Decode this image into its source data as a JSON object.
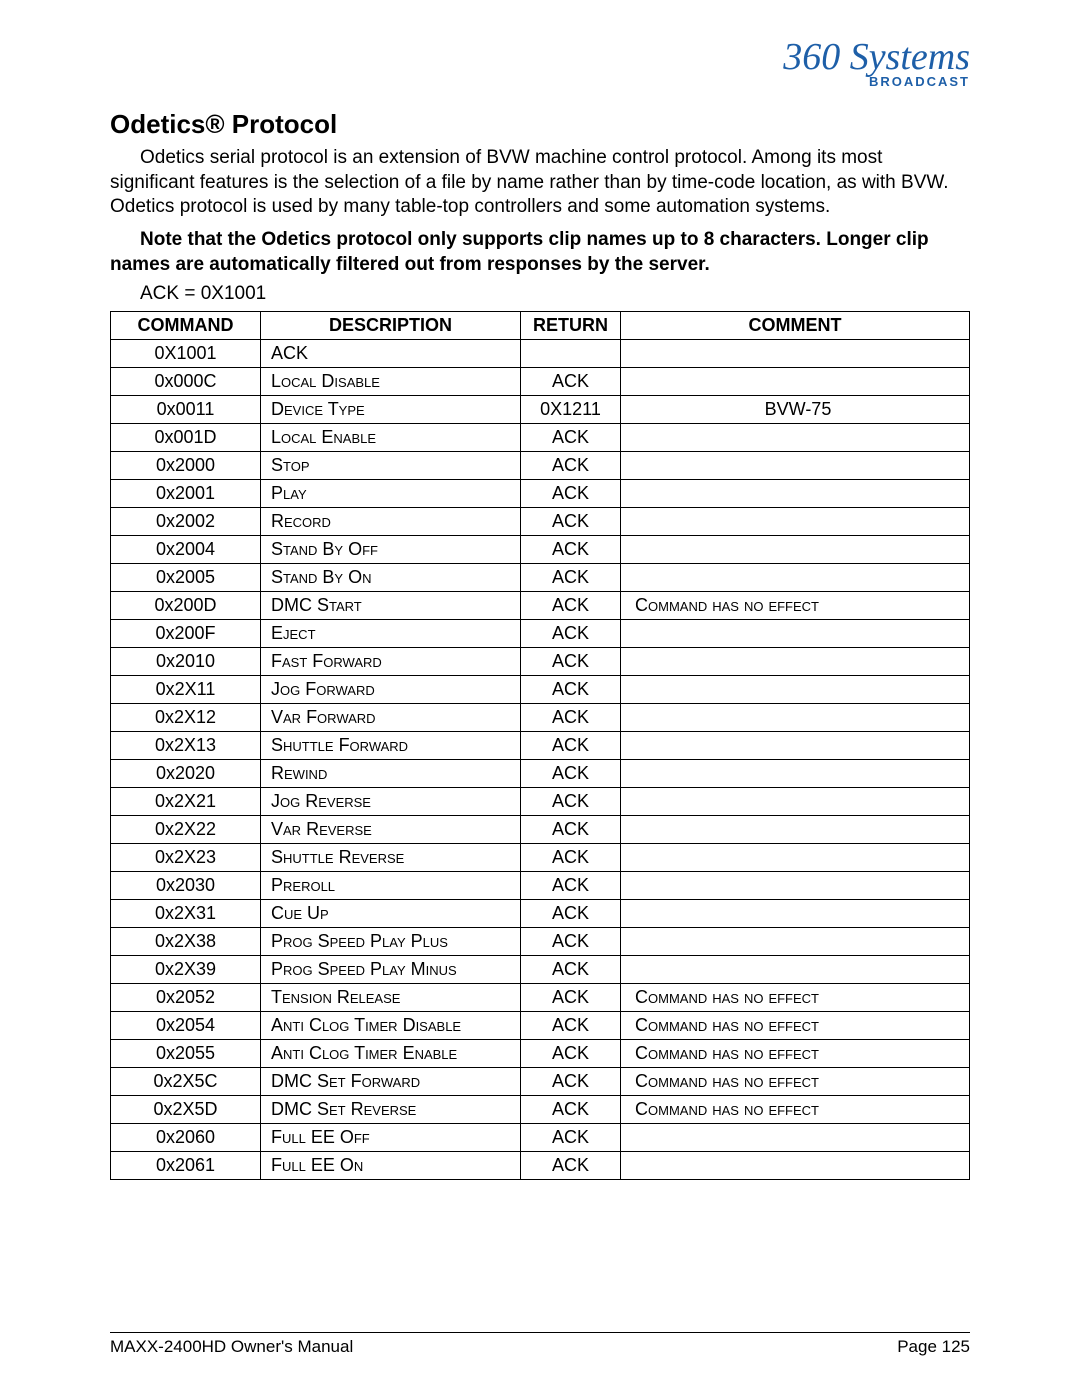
{
  "logo": {
    "script": "360 Systems",
    "sub": "BROADCAST"
  },
  "title": "Odetics® Protocol",
  "paragraph": "Odetics serial protocol is an extension of BVW machine control protocol.  Among its most significant features is the selection of a file by name rather than by time-code location, as with BVW.  Odetics protocol is used by many table-top controllers and some automation systems.",
  "note": "Note that the Odetics protocol only supports clip names up to 8 characters.  Longer clip names are automatically filtered out from responses by the server.",
  "ack_line": "ACK = 0X1001",
  "table": {
    "headers": {
      "command": "COMMAND",
      "description": "DESCRIPTION",
      "return": "RETURN",
      "comment": "COMMENT"
    },
    "col_widths": {
      "command": 150,
      "description": 260,
      "return": 100,
      "comment": 230
    },
    "rows": [
      {
        "command": "0X1001",
        "description": "ACK",
        "return": "",
        "comment": ""
      },
      {
        "command": "0x000C",
        "description": "Local Disable",
        "return": "ACK",
        "comment": ""
      },
      {
        "command": "0x0011",
        "description": "Device Type",
        "return": "0X1211",
        "comment": "BVW-75"
      },
      {
        "command": "0x001D",
        "description": "Local Enable",
        "return": "ACK",
        "comment": ""
      },
      {
        "command": "0x2000",
        "description": "Stop",
        "return": "ACK",
        "comment": ""
      },
      {
        "command": "0x2001",
        "description": "Play",
        "return": "ACK",
        "comment": ""
      },
      {
        "command": "0x2002",
        "description": "Record",
        "return": "ACK",
        "comment": ""
      },
      {
        "command": "0x2004",
        "description": "Stand By Off",
        "return": "ACK",
        "comment": ""
      },
      {
        "command": "0x2005",
        "description": "Stand By On",
        "return": "ACK",
        "comment": ""
      },
      {
        "command": "0x200D",
        "description": "DMC Start",
        "return": "ACK",
        "comment": "Command has no effect"
      },
      {
        "command": "0x200F",
        "description": "Eject",
        "return": "ACK",
        "comment": ""
      },
      {
        "command": "0x2010",
        "description": "Fast Forward",
        "return": "ACK",
        "comment": ""
      },
      {
        "command": "0x2X11",
        "description": "Jog Forward",
        "return": "ACK",
        "comment": ""
      },
      {
        "command": "0x2X12",
        "description": "Var Forward",
        "return": "ACK",
        "comment": ""
      },
      {
        "command": "0x2X13",
        "description": "Shuttle Forward",
        "return": "ACK",
        "comment": ""
      },
      {
        "command": "0x2020",
        "description": "Rewind",
        "return": "ACK",
        "comment": ""
      },
      {
        "command": "0x2X21",
        "description": "Jog Reverse",
        "return": "ACK",
        "comment": ""
      },
      {
        "command": "0x2X22",
        "description": "Var Reverse",
        "return": "ACK",
        "comment": ""
      },
      {
        "command": "0x2X23",
        "description": "Shuttle Reverse",
        "return": "ACK",
        "comment": ""
      },
      {
        "command": "0x2030",
        "description": "Preroll",
        "return": "ACK",
        "comment": ""
      },
      {
        "command": "0x2X31",
        "description": "Cue Up",
        "return": "ACK",
        "comment": ""
      },
      {
        "command": "0x2X38",
        "description": "Prog Speed Play Plus",
        "return": "ACK",
        "comment": ""
      },
      {
        "command": "0x2X39",
        "description": "Prog Speed Play Minus",
        "return": "ACK",
        "comment": ""
      },
      {
        "command": "0x2052",
        "description": "Tension Release",
        "return": "ACK",
        "comment": "Command has no effect"
      },
      {
        "command": "0x2054",
        "description": "Anti Clog Timer Disable",
        "return": "ACK",
        "comment": "Command has no effect"
      },
      {
        "command": "0x2055",
        "description": "Anti Clog Timer Enable",
        "return": "ACK",
        "comment": "Command has no effect"
      },
      {
        "command": "0x2X5C",
        "description": "DMC Set Forward",
        "return": "ACK",
        "comment": "Command has no effect"
      },
      {
        "command": "0x2X5D",
        "description": "DMC Set Reverse",
        "return": "ACK",
        "comment": "Command has no effect"
      },
      {
        "command": "0x2060",
        "description": "Full EE Off",
        "return": "ACK",
        "comment": ""
      },
      {
        "command": "0x2061",
        "description": "Full EE On",
        "return": "ACK",
        "comment": ""
      }
    ]
  },
  "footer": {
    "left": "MAXX-2400HD Owner's Manual",
    "right": "Page 125"
  }
}
